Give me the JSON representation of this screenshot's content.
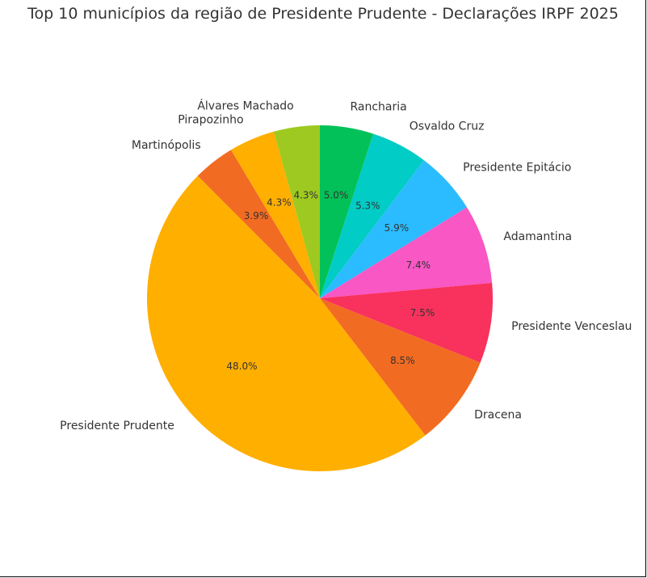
{
  "chart_data": {
    "type": "pie",
    "title": "Top 10 municípios da região de Presidente Prudente - Declarações IRPF 2025",
    "start_angle_deg": 90,
    "direction": "clockwise",
    "slices": [
      {
        "label": "Rancharia",
        "pct_label": "5.0%",
        "value": 5.0,
        "color": "#02c158"
      },
      {
        "label": "Osvaldo Cruz",
        "pct_label": "5.3%",
        "value": 5.3,
        "color": "#01ccc5"
      },
      {
        "label": "Presidente Epitácio",
        "pct_label": "5.9%",
        "value": 5.9,
        "color": "#2bbcff"
      },
      {
        "label": "Adamantina",
        "pct_label": "7.4%",
        "value": 7.4,
        "color": "#f857c4"
      },
      {
        "label": "Presidente Venceslau",
        "pct_label": "7.5%",
        "value": 7.5,
        "color": "#f8325c"
      },
      {
        "label": "Dracena",
        "pct_label": "8.5%",
        "value": 8.5,
        "color": "#f26b22"
      },
      {
        "label": "Presidente Prudente",
        "pct_label": "48.0%",
        "value": 48.0,
        "color": "#ffaf00"
      },
      {
        "label": "Martinópolis",
        "pct_label": "3.9%",
        "value": 3.9,
        "color": "#f26b22"
      },
      {
        "label": "Pirapozinho",
        "pct_label": "4.3%",
        "value": 4.3,
        "color": "#ffaf00"
      },
      {
        "label": "Álvares Machado",
        "pct_label": "4.3%",
        "value": 4.3,
        "color": "#9ec920"
      }
    ]
  }
}
